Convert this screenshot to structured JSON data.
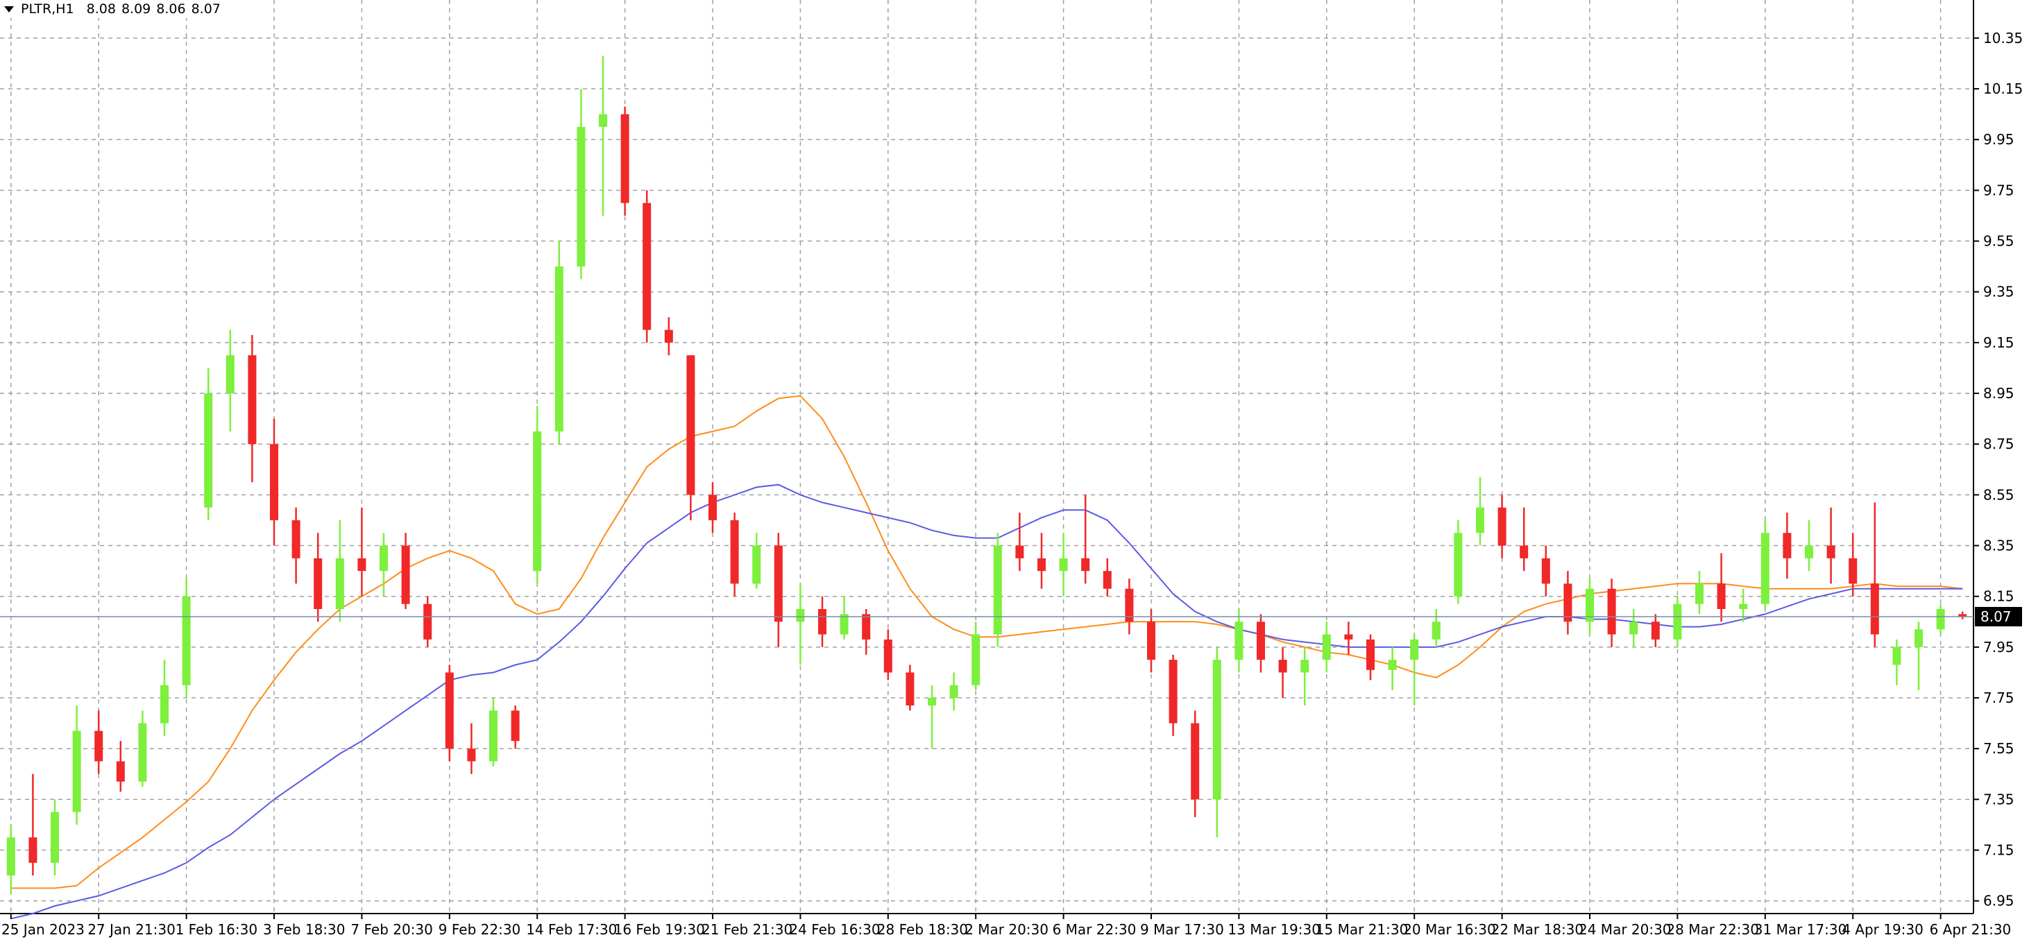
{
  "chart_data": {
    "type": "candlestick",
    "title": "PLTR,H1",
    "header_ohlc": [
      8.08,
      8.09,
      8.06,
      8.07
    ],
    "current_price": 8.07,
    "ylim": [
      6.9,
      10.5
    ],
    "yticks": [
      6.95,
      7.15,
      7.35,
      7.55,
      7.75,
      7.95,
      8.15,
      8.35,
      8.55,
      8.75,
      8.95,
      9.15,
      9.35,
      9.55,
      9.75,
      9.95,
      10.15,
      10.35
    ],
    "grid": true,
    "up_color": "#7cf03c",
    "down_color": "#f02828",
    "categories": [
      "25 Jan 2023",
      null,
      null,
      null,
      "27 Jan 21:30",
      null,
      null,
      null,
      "1 Feb 16:30",
      null,
      null,
      null,
      "3 Feb 18:30",
      null,
      null,
      null,
      "7 Feb 20:30",
      null,
      null,
      null,
      "9 Feb 22:30",
      null,
      null,
      null,
      "14 Feb 17:30",
      null,
      null,
      null,
      "16 Feb 19:30",
      null,
      null,
      null,
      "21 Feb 21:30",
      null,
      null,
      null,
      "24 Feb 16:30",
      null,
      null,
      null,
      "28 Feb 18:30",
      null,
      null,
      null,
      "2 Mar 20:30",
      null,
      null,
      null,
      "6 Mar 22:30",
      null,
      null,
      null,
      "9 Mar 17:30",
      null,
      null,
      null,
      "13 Mar 19:30",
      null,
      null,
      null,
      "15 Mar 21:30",
      null,
      null,
      null,
      "20 Mar 16:30",
      null,
      null,
      null,
      "22 Mar 18:30",
      null,
      null,
      null,
      "24 Mar 20:30",
      null,
      null,
      null,
      "28 Mar 22:30",
      null,
      null,
      null,
      "31 Mar 17:30",
      null,
      null,
      null,
      "4 Apr 19:30",
      null,
      null,
      null,
      "6 Apr 21:30",
      null
    ],
    "open": [
      7.05,
      7.2,
      7.1,
      7.3,
      7.62,
      7.5,
      7.42,
      7.65,
      7.8,
      8.5,
      8.95,
      9.1,
      8.75,
      8.45,
      8.3,
      8.1,
      8.3,
      8.25,
      8.35,
      8.12,
      7.85,
      7.55,
      7.5,
      7.7,
      8.25,
      8.8,
      9.45,
      10.0,
      10.05,
      9.7,
      9.2,
      9.1,
      8.55,
      8.45,
      8.2,
      8.35,
      8.05,
      8.1,
      8.0,
      8.08,
      7.98,
      7.85,
      7.72,
      7.75,
      7.8,
      8.0,
      8.35,
      8.3,
      8.25,
      8.3,
      8.25,
      8.18,
      8.05,
      7.9,
      7.65,
      7.35,
      7.9,
      8.05,
      7.9,
      7.85,
      7.9,
      8.0,
      7.98,
      7.86,
      7.9,
      7.98,
      8.15,
      8.4,
      8.5,
      8.35,
      8.3,
      8.2,
      8.05,
      8.18,
      8.0,
      8.05,
      7.98,
      8.12,
      8.2,
      8.1,
      8.12,
      8.4,
      8.3,
      8.35,
      8.3,
      8.2,
      7.88,
      7.95,
      8.02,
      8.08
    ],
    "high": [
      7.25,
      7.45,
      7.35,
      7.72,
      7.7,
      7.58,
      7.7,
      7.9,
      8.22,
      9.05,
      9.2,
      9.18,
      8.85,
      8.5,
      8.4,
      8.45,
      8.5,
      8.4,
      8.4,
      8.15,
      7.88,
      7.65,
      7.75,
      7.72,
      8.9,
      9.55,
      10.15,
      10.28,
      10.08,
      9.75,
      9.25,
      9.1,
      8.6,
      8.48,
      8.4,
      8.4,
      8.2,
      8.15,
      8.15,
      8.1,
      8.02,
      7.88,
      7.8,
      7.85,
      8.05,
      8.4,
      8.48,
      8.4,
      8.4,
      8.55,
      8.3,
      8.22,
      8.1,
      7.92,
      7.7,
      7.95,
      8.1,
      8.08,
      7.95,
      7.95,
      8.05,
      8.05,
      8.0,
      7.95,
      8.0,
      8.1,
      8.45,
      8.62,
      8.55,
      8.5,
      8.35,
      8.25,
      8.22,
      8.22,
      8.1,
      8.08,
      8.15,
      8.25,
      8.32,
      8.18,
      8.45,
      8.48,
      8.45,
      8.5,
      8.4,
      8.52,
      7.98,
      8.05,
      8.12,
      8.09
    ],
    "low": [
      6.98,
      7.05,
      7.05,
      7.25,
      7.45,
      7.38,
      7.4,
      7.6,
      7.75,
      8.45,
      8.8,
      8.6,
      8.35,
      8.2,
      8.05,
      8.05,
      8.15,
      8.15,
      8.1,
      7.95,
      7.5,
      7.45,
      7.48,
      7.55,
      8.2,
      8.75,
      9.4,
      9.65,
      9.65,
      9.15,
      9.1,
      8.45,
      8.4,
      8.15,
      8.18,
      7.95,
      7.88,
      7.95,
      7.98,
      7.92,
      7.82,
      7.7,
      7.55,
      7.7,
      7.78,
      7.95,
      8.25,
      8.18,
      8.15,
      8.2,
      8.15,
      8.0,
      7.85,
      7.6,
      7.28,
      7.2,
      7.85,
      7.85,
      7.75,
      7.72,
      7.85,
      7.92,
      7.82,
      7.78,
      7.72,
      7.95,
      8.12,
      8.35,
      8.3,
      8.25,
      8.15,
      8.0,
      8.0,
      7.95,
      7.95,
      7.95,
      7.95,
      8.08,
      8.05,
      8.05,
      8.1,
      8.22,
      8.25,
      8.2,
      8.15,
      7.95,
      7.8,
      7.78,
      8.0,
      8.06
    ],
    "close": [
      7.2,
      7.1,
      7.3,
      7.62,
      7.5,
      7.42,
      7.65,
      7.8,
      8.15,
      8.95,
      9.1,
      8.75,
      8.45,
      8.3,
      8.1,
      8.3,
      8.25,
      8.35,
      8.12,
      7.98,
      7.55,
      7.5,
      7.7,
      7.58,
      8.8,
      9.45,
      10.0,
      10.05,
      9.7,
      9.2,
      9.15,
      8.55,
      8.45,
      8.2,
      8.35,
      8.05,
      8.1,
      8.0,
      8.08,
      7.98,
      7.85,
      7.72,
      7.75,
      7.8,
      8.0,
      8.35,
      8.3,
      8.25,
      8.3,
      8.25,
      8.18,
      8.05,
      7.9,
      7.65,
      7.35,
      7.9,
      8.05,
      7.9,
      7.85,
      7.9,
      8.0,
      7.98,
      7.86,
      7.9,
      7.98,
      8.05,
      8.4,
      8.5,
      8.35,
      8.3,
      8.2,
      8.05,
      8.18,
      8.0,
      8.05,
      7.98,
      8.12,
      8.2,
      8.1,
      8.12,
      8.4,
      8.3,
      8.35,
      8.3,
      8.2,
      8.0,
      7.95,
      8.02,
      8.1,
      8.07
    ],
    "moving_averages": [
      {
        "color": "#ff8c1a",
        "values": [
          7.0,
          7.0,
          7.0,
          7.01,
          7.08,
          7.14,
          7.2,
          7.27,
          7.34,
          7.42,
          7.55,
          7.7,
          7.82,
          7.93,
          8.02,
          8.1,
          8.15,
          8.2,
          8.26,
          8.3,
          8.33,
          8.3,
          8.25,
          8.12,
          8.08,
          8.1,
          8.22,
          8.38,
          8.52,
          8.66,
          8.73,
          8.78,
          8.8,
          8.82,
          8.88,
          8.93,
          8.94,
          8.85,
          8.7,
          8.52,
          8.33,
          8.18,
          8.07,
          8.02,
          7.99,
          7.99,
          8.0,
          8.01,
          8.02,
          8.03,
          8.04,
          8.05,
          8.05,
          8.05,
          8.05,
          8.04,
          8.02,
          8.0,
          7.97,
          7.95,
          7.93,
          7.92,
          7.9,
          7.88,
          7.85,
          7.83,
          7.88,
          7.95,
          8.03,
          8.09,
          8.12,
          8.14,
          8.16,
          8.17,
          8.18,
          8.19,
          8.2,
          8.2,
          8.2,
          8.19,
          8.18,
          8.18,
          8.18,
          8.18,
          8.19,
          8.2,
          8.19,
          8.19,
          8.19,
          8.18
        ]
      },
      {
        "color": "#5a5ae6",
        "values": [
          6.88,
          6.9,
          6.93,
          6.95,
          6.97,
          7.0,
          7.03,
          7.06,
          7.1,
          7.16,
          7.21,
          7.28,
          7.35,
          7.41,
          7.47,
          7.53,
          7.58,
          7.64,
          7.7,
          7.76,
          7.82,
          7.84,
          7.85,
          7.88,
          7.9,
          7.97,
          8.05,
          8.15,
          8.26,
          8.36,
          8.42,
          8.48,
          8.52,
          8.55,
          8.58,
          8.59,
          8.55,
          8.52,
          8.5,
          8.48,
          8.46,
          8.44,
          8.41,
          8.39,
          8.38,
          8.38,
          8.42,
          8.46,
          8.49,
          8.49,
          8.45,
          8.36,
          8.26,
          8.16,
          8.09,
          8.05,
          8.02,
          8.0,
          7.98,
          7.97,
          7.96,
          7.95,
          7.95,
          7.95,
          7.95,
          7.95,
          7.97,
          8.0,
          8.03,
          8.05,
          8.07,
          8.07,
          8.06,
          8.06,
          8.05,
          8.04,
          8.03,
          8.03,
          8.04,
          8.06,
          8.08,
          8.11,
          8.14,
          8.16,
          8.18,
          8.18,
          8.18,
          8.18,
          8.18,
          8.18
        ]
      }
    ]
  }
}
